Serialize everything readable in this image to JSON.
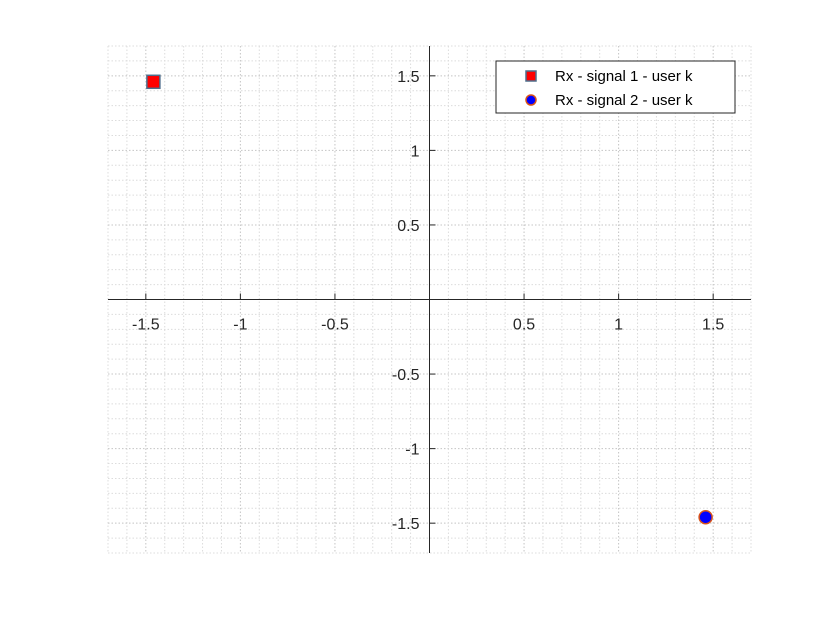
{
  "chart_data": {
    "type": "scatter",
    "title": "",
    "xlabel": "",
    "ylabel": "",
    "xlim": [
      -1.7,
      1.7
    ],
    "ylim": [
      -1.7,
      1.7
    ],
    "grid": "on (minor dotted)",
    "axis_location": "origin",
    "legend_position": "top-right",
    "xticks": [
      -1.5,
      -1,
      -0.5,
      0.5,
      1,
      1.5
    ],
    "xtick_labels": [
      "-1.5",
      "-1",
      "-0.5",
      "0.5",
      "1",
      "1.5"
    ],
    "yticks": [
      1.5,
      1,
      0.5,
      -0.5,
      -1,
      -1.5
    ],
    "ytick_labels": [
      "1.5",
      "1",
      "0.5",
      "-0.5",
      "-1",
      "-1.5"
    ],
    "series": [
      {
        "name": "Rx - signal 1 - user k",
        "marker": "square",
        "color": "#ff0000",
        "edge_color": "#4d6e8c",
        "points": [
          {
            "x": -1.46,
            "y": 1.46
          }
        ]
      },
      {
        "name": "Rx - signal 2 - user k",
        "marker": "circle",
        "color": "#0000ff",
        "edge_color": "#d95319",
        "points": [
          {
            "x": 1.46,
            "y": -1.46
          }
        ]
      }
    ]
  }
}
